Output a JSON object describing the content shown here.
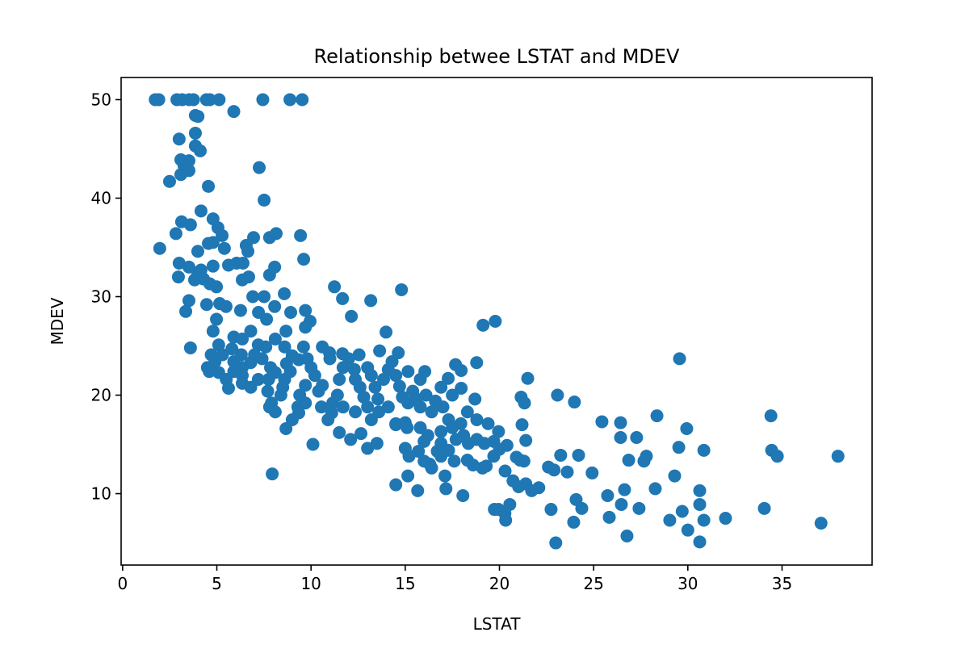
{
  "chart_data": {
    "type": "scatter",
    "title": "Relationship betwee LSTAT and MDEV",
    "xlabel": "LSTAT",
    "ylabel": "MDEV",
    "xlim": [
      -0.08,
      39.78
    ],
    "ylim": [
      2.75,
      52.25
    ],
    "xticks": [
      0,
      5,
      10,
      15,
      20,
      25,
      30,
      35
    ],
    "yticks": [
      10,
      20,
      30,
      40,
      50
    ],
    "grid": false,
    "color": "#1f77b4",
    "points": [
      [
        1.73,
        50
      ],
      [
        1.92,
        50
      ],
      [
        2.88,
        50
      ],
      [
        3.16,
        50
      ],
      [
        3.53,
        50
      ],
      [
        3.76,
        50
      ],
      [
        4.45,
        50
      ],
      [
        4.63,
        50
      ],
      [
        5.12,
        50
      ],
      [
        7.44,
        50
      ],
      [
        8.88,
        50
      ],
      [
        9.53,
        50
      ],
      [
        5.9,
        48.8
      ],
      [
        3.86,
        48.4
      ],
      [
        4.0,
        48.3
      ],
      [
        3.86,
        46.6
      ],
      [
        3.0,
        46.0
      ],
      [
        3.86,
        45.3
      ],
      [
        4.12,
        44.8
      ],
      [
        3.09,
        43.9
      ],
      [
        3.52,
        43.8
      ],
      [
        3.26,
        43.3
      ],
      [
        3.52,
        42.8
      ],
      [
        3.09,
        42.4
      ],
      [
        2.49,
        41.7
      ],
      [
        4.55,
        41.2
      ],
      [
        7.25,
        43.1
      ],
      [
        7.51,
        39.8
      ],
      [
        4.16,
        38.7
      ],
      [
        4.8,
        37.9
      ],
      [
        3.13,
        37.6
      ],
      [
        3.6,
        37.3
      ],
      [
        2.83,
        36.4
      ],
      [
        5.06,
        37.0
      ],
      [
        5.28,
        36.2
      ],
      [
        8.15,
        36.4
      ],
      [
        6.95,
        36.0
      ],
      [
        7.8,
        36.0
      ],
      [
        9.44,
        36.2
      ],
      [
        1.97,
        34.9
      ],
      [
        3.99,
        34.6
      ],
      [
        4.55,
        35.4
      ],
      [
        4.8,
        35.5
      ],
      [
        5.4,
        34.9
      ],
      [
        6.56,
        35.2
      ],
      [
        6.65,
        34.6
      ],
      [
        9.61,
        33.8
      ],
      [
        8.07,
        33.0
      ],
      [
        3.0,
        33.4
      ],
      [
        3.52,
        33.0
      ],
      [
        4.16,
        32.7
      ],
      [
        4.8,
        33.1
      ],
      [
        5.62,
        33.2
      ],
      [
        6.05,
        33.4
      ],
      [
        6.39,
        33.4
      ],
      [
        2.96,
        32.0
      ],
      [
        3.99,
        32.3
      ],
      [
        4.29,
        31.8
      ],
      [
        3.82,
        31.7
      ],
      [
        6.35,
        31.7
      ],
      [
        6.69,
        32.0
      ],
      [
        4.63,
        31.3
      ],
      [
        4.98,
        31.0
      ],
      [
        7.8,
        32.2
      ],
      [
        11.24,
        31.0
      ],
      [
        14.8,
        30.7
      ],
      [
        13.17,
        29.6
      ],
      [
        11.67,
        29.8
      ],
      [
        8.58,
        30.3
      ],
      [
        6.91,
        30.0
      ],
      [
        7.51,
        30.0
      ],
      [
        4.46,
        29.2
      ],
      [
        3.52,
        29.6
      ],
      [
        3.35,
        28.5
      ],
      [
        8.07,
        29.0
      ],
      [
        8.92,
        28.4
      ],
      [
        9.7,
        28.6
      ],
      [
        12.14,
        28.0
      ],
      [
        7.21,
        28.4
      ],
      [
        6.26,
        28.6
      ],
      [
        5.49,
        29.0
      ],
      [
        5.15,
        29.3
      ],
      [
        4.98,
        27.7
      ],
      [
        7.64,
        27.7
      ],
      [
        9.95,
        27.5
      ],
      [
        4.8,
        26.5
      ],
      [
        8.67,
        26.5
      ],
      [
        9.7,
        26.9
      ],
      [
        13.98,
        26.4
      ],
      [
        19.13,
        27.1
      ],
      [
        19.78,
        27.5
      ],
      [
        3.6,
        24.8
      ],
      [
        5.1,
        25.1
      ],
      [
        13.64,
        24.5
      ],
      [
        14.63,
        24.3
      ],
      [
        10.98,
        24.3
      ],
      [
        11.67,
        24.2
      ],
      [
        17.67,
        23.1
      ],
      [
        18.79,
        23.3
      ],
      [
        17.97,
        22.5
      ],
      [
        16.04,
        22.4
      ],
      [
        29.56,
        23.7
      ],
      [
        21.5,
        21.7
      ],
      [
        17.28,
        21.7
      ],
      [
        17.97,
        20.7
      ],
      [
        23.08,
        20.0
      ],
      [
        23.98,
        19.3
      ],
      [
        21.15,
        19.8
      ],
      [
        21.33,
        19.2
      ],
      [
        18.7,
        19.6
      ],
      [
        25.44,
        17.3
      ],
      [
        26.43,
        17.2
      ],
      [
        28.36,
        17.9
      ],
      [
        27.28,
        15.7
      ],
      [
        29.94,
        16.6
      ],
      [
        34.41,
        17.9
      ],
      [
        34.45,
        14.4
      ],
      [
        34.75,
        13.8
      ],
      [
        37.97,
        13.8
      ],
      [
        30.85,
        14.4
      ],
      [
        29.52,
        14.7
      ],
      [
        27.8,
        13.8
      ],
      [
        27.67,
        13.3
      ],
      [
        26.86,
        13.4
      ],
      [
        26.43,
        15.7
      ],
      [
        24.92,
        12.1
      ],
      [
        24.2,
        13.9
      ],
      [
        23.25,
        13.9
      ],
      [
        22.6,
        12.7
      ],
      [
        23.6,
        12.2
      ],
      [
        22.9,
        12.4
      ],
      [
        28.27,
        10.5
      ],
      [
        29.3,
        11.8
      ],
      [
        30.63,
        10.3
      ],
      [
        30.63,
        8.9
      ],
      [
        30.85,
        7.3
      ],
      [
        32.0,
        7.5
      ],
      [
        34.06,
        8.5
      ],
      [
        37.07,
        7.0
      ],
      [
        30.63,
        5.1
      ],
      [
        30.0,
        6.3
      ],
      [
        29.7,
        8.2
      ],
      [
        29.04,
        7.3
      ],
      [
        27.41,
        8.5
      ],
      [
        26.47,
        8.9
      ],
      [
        26.64,
        10.4
      ],
      [
        25.74,
        9.8
      ],
      [
        26.77,
        5.7
      ],
      [
        25.83,
        7.6
      ],
      [
        24.37,
        8.5
      ],
      [
        24.07,
        9.4
      ],
      [
        23.94,
        7.1
      ],
      [
        22.99,
        5.0
      ],
      [
        22.74,
        8.4
      ],
      [
        22.09,
        10.6
      ],
      [
        21.71,
        10.3
      ],
      [
        21.4,
        11.0
      ],
      [
        21.02,
        10.7
      ],
      [
        20.72,
        11.3
      ],
      [
        20.55,
        8.9
      ],
      [
        20.29,
        8.0
      ],
      [
        19.95,
        8.4
      ],
      [
        19.73,
        8.4
      ],
      [
        20.33,
        7.3
      ],
      [
        18.06,
        9.8
      ],
      [
        17.16,
        10.5
      ],
      [
        15.66,
        10.3
      ],
      [
        14.5,
        10.9
      ],
      [
        15.14,
        11.8
      ],
      [
        17.11,
        11.8
      ],
      [
        21.4,
        15.4
      ],
      [
        21.2,
        17.0
      ],
      [
        20.4,
        14.9
      ],
      [
        19.95,
        16.3
      ],
      [
        19.4,
        17.1
      ],
      [
        19.1,
        12.6
      ],
      [
        19.3,
        12.8
      ],
      [
        20.0,
        14.5
      ],
      [
        19.7,
        13.8
      ],
      [
        20.9,
        13.7
      ],
      [
        21.1,
        13.4
      ],
      [
        21.3,
        13.3
      ],
      [
        20.3,
        12.3
      ],
      [
        18.6,
        12.9
      ],
      [
        18.3,
        13.4
      ],
      [
        17.6,
        13.3
      ],
      [
        16.3,
        13.0
      ],
      [
        16.0,
        13.3
      ],
      [
        16.4,
        12.6
      ],
      [
        16.9,
        13.8
      ],
      [
        17.3,
        14.4
      ],
      [
        15.2,
        13.8
      ],
      [
        15.7,
        14.3
      ],
      [
        13.5,
        15.1
      ],
      [
        13.0,
        14.6
      ],
      [
        12.65,
        16.1
      ],
      [
        12.1,
        15.5
      ],
      [
        11.5,
        16.2
      ],
      [
        10.1,
        15.0
      ],
      [
        8.67,
        16.6
      ],
      [
        7.94,
        12.0
      ],
      [
        14.5,
        17.0
      ],
      [
        15.0,
        14.6
      ],
      [
        15.0,
        17.2
      ],
      [
        15.1,
        16.7
      ],
      [
        5.62,
        20.7
      ],
      [
        5.9,
        23.4
      ],
      [
        5.1,
        22.3
      ],
      [
        4.7,
        24.1
      ],
      [
        4.5,
        22.8
      ],
      [
        4.9,
        23.4
      ],
      [
        5.3,
        24.1
      ],
      [
        5.8,
        24.7
      ],
      [
        6.3,
        24.1
      ],
      [
        6.35,
        22.8
      ],
      [
        6.8,
        23.3
      ],
      [
        7.0,
        24.1
      ],
      [
        7.2,
        25.1
      ],
      [
        7.6,
        24.9
      ],
      [
        7.4,
        23.7
      ],
      [
        7.85,
        22.8
      ],
      [
        8.1,
        22.3
      ],
      [
        7.75,
        21.6
      ],
      [
        7.7,
        20.4
      ],
      [
        7.9,
        19.2
      ],
      [
        7.8,
        18.8
      ],
      [
        8.1,
        18.3
      ],
      [
        8.4,
        20.0
      ],
      [
        8.6,
        21.6
      ],
      [
        8.9,
        22.4
      ],
      [
        8.7,
        23.2
      ],
      [
        9.0,
        24.0
      ],
      [
        9.35,
        23.6
      ],
      [
        9.6,
        24.9
      ],
      [
        9.8,
        23.7
      ],
      [
        10.0,
        22.8
      ],
      [
        10.2,
        22.0
      ],
      [
        9.7,
        21.0
      ],
      [
        9.4,
        20.0
      ],
      [
        9.3,
        18.8
      ],
      [
        9.7,
        19.2
      ],
      [
        10.4,
        20.4
      ],
      [
        10.6,
        21.0
      ],
      [
        10.55,
        18.8
      ],
      [
        10.9,
        17.5
      ],
      [
        11.15,
        19.2
      ],
      [
        11.4,
        20.0
      ],
      [
        11.5,
        21.6
      ],
      [
        11.7,
        22.8
      ],
      [
        12.0,
        23.7
      ],
      [
        12.3,
        22.6
      ],
      [
        12.35,
        21.6
      ],
      [
        12.6,
        20.8
      ],
      [
        12.8,
        19.8
      ],
      [
        13.0,
        18.8
      ],
      [
        13.2,
        17.5
      ],
      [
        13.6,
        18.3
      ],
      [
        13.55,
        19.6
      ],
      [
        13.4,
        20.8
      ],
      [
        13.2,
        22.0
      ],
      [
        13.85,
        21.6
      ],
      [
        14.1,
        22.6
      ],
      [
        14.3,
        23.4
      ],
      [
        14.5,
        22.0
      ],
      [
        14.7,
        20.9
      ],
      [
        14.85,
        19.8
      ],
      [
        15.15,
        19.2
      ],
      [
        15.4,
        20.4
      ],
      [
        15.6,
        19.6
      ],
      [
        15.8,
        18.8
      ],
      [
        16.1,
        20.0
      ],
      [
        16.4,
        18.3
      ],
      [
        16.6,
        19.4
      ],
      [
        17.0,
        18.8
      ],
      [
        17.3,
        17.5
      ],
      [
        17.5,
        16.7
      ],
      [
        17.95,
        17.1
      ],
      [
        18.1,
        15.9
      ],
      [
        18.35,
        15.1
      ],
      [
        18.8,
        15.5
      ],
      [
        17.7,
        15.5
      ],
      [
        16.9,
        16.3
      ],
      [
        16.2,
        15.9
      ],
      [
        15.8,
        16.7
      ],
      [
        14.5,
        17.1
      ],
      [
        14.1,
        18.8
      ],
      [
        12.35,
        18.3
      ],
      [
        11.7,
        18.8
      ],
      [
        11.1,
        18.2
      ],
      [
        8.5,
        20.8
      ],
      [
        7.2,
        21.6
      ],
      [
        6.8,
        20.8
      ],
      [
        6.35,
        22.0
      ],
      [
        5.9,
        22.4
      ],
      [
        5.5,
        21.6
      ],
      [
        4.6,
        22.4
      ],
      [
        6.35,
        21.2
      ],
      [
        9.0,
        17.5
      ],
      [
        9.35,
        18.2
      ],
      [
        6.35,
        25.7
      ],
      [
        5.9,
        25.9
      ],
      [
        6.8,
        26.5
      ],
      [
        8.1,
        25.7
      ],
      [
        8.6,
        24.9
      ],
      [
        10.6,
        24.9
      ],
      [
        11.0,
        23.7
      ],
      [
        12.55,
        24.1
      ],
      [
        13.0,
        22.8
      ],
      [
        15.15,
        22.4
      ],
      [
        15.8,
        21.6
      ],
      [
        16.9,
        20.8
      ],
      [
        17.5,
        20.0
      ],
      [
        18.3,
        18.3
      ],
      [
        18.8,
        17.5
      ],
      [
        19.2,
        15.1
      ],
      [
        19.7,
        15.3
      ],
      [
        16.7,
        14.3
      ],
      [
        16.9,
        15.1
      ],
      [
        16.0,
        15.3
      ]
    ]
  }
}
